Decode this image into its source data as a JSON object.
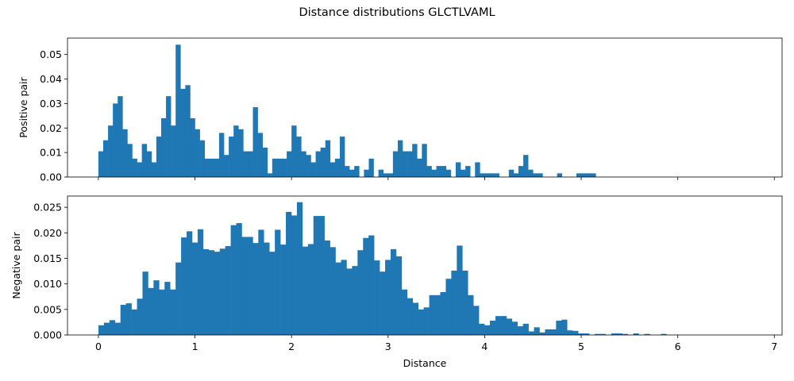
{
  "figure_title": "Distance distributions GLCTLVAML",
  "chart_data": [
    {
      "type": "bar",
      "panel": "top",
      "xlabel": "",
      "ylabel": "Positive pair",
      "xlim": [
        -0.32,
        7.08
      ],
      "ylim": [
        0,
        0.0567
      ],
      "x_ticks": [
        0,
        1,
        2,
        3,
        4,
        5,
        6,
        7
      ],
      "x_tick_labels_shown": false,
      "y_ticks": [
        0.0,
        0.01,
        0.02,
        0.03,
        0.04,
        0.05
      ],
      "y_tick_labels": [
        "0.00",
        "0.01",
        "0.02",
        "0.03",
        "0.04",
        "0.05"
      ],
      "bin_start": 0.0,
      "bin_width": 0.05,
      "color": "#1f77b4",
      "values": [
        0.0105,
        0.015,
        0.021,
        0.03,
        0.033,
        0.0195,
        0.0135,
        0.0075,
        0.006,
        0.0135,
        0.0105,
        0.006,
        0.0165,
        0.024,
        0.033,
        0.021,
        0.054,
        0.036,
        0.0375,
        0.024,
        0.0195,
        0.015,
        0.0075,
        0.0075,
        0.0075,
        0.018,
        0.009,
        0.0165,
        0.021,
        0.0195,
        0.0105,
        0.0105,
        0.0285,
        0.018,
        0.012,
        0.0015,
        0.0075,
        0.0075,
        0.0075,
        0.0105,
        0.021,
        0.0165,
        0.0105,
        0.009,
        0.006,
        0.0105,
        0.012,
        0.015,
        0.006,
        0.0075,
        0.0165,
        0.0045,
        0.003,
        0.0045,
        0.0,
        0.003,
        0.0075,
        0.0,
        0.003,
        0.0015,
        0.0015,
        0.0105,
        0.015,
        0.0105,
        0.0105,
        0.0135,
        0.0075,
        0.0135,
        0.0045,
        0.003,
        0.0045,
        0.0045,
        0.003,
        0.0,
        0.006,
        0.003,
        0.0045,
        0.0,
        0.006,
        0.0015,
        0.0015,
        0.0015,
        0.0015,
        0.0,
        0.0,
        0.003,
        0.0015,
        0.0045,
        0.009,
        0.003,
        0.0015,
        0.0015,
        0.0,
        0.0,
        0.0,
        0.0015,
        0.0,
        0.0,
        0.0,
        0.0015,
        0.0015,
        0.0015,
        0.0015
      ]
    },
    {
      "type": "bar",
      "panel": "bottom",
      "xlabel": "Distance",
      "ylabel": "Negative pair",
      "xlim": [
        -0.32,
        7.08
      ],
      "ylim": [
        0,
        0.0272
      ],
      "x_ticks": [
        0,
        1,
        2,
        3,
        4,
        5,
        6,
        7
      ],
      "x_tick_labels": [
        "0",
        "1",
        "2",
        "3",
        "4",
        "5",
        "6",
        "7"
      ],
      "y_ticks": [
        0.0,
        0.005,
        0.01,
        0.015,
        0.02,
        0.025
      ],
      "y_tick_labels": [
        "0.000",
        "0.005",
        "0.010",
        "0.015",
        "0.020",
        "0.025"
      ],
      "bin_start": 0.0,
      "bin_width": 0.0571,
      "color": "#1f77b4",
      "values": [
        0.0019,
        0.0024,
        0.0029,
        0.0024,
        0.0059,
        0.0062,
        0.005,
        0.0071,
        0.0124,
        0.0092,
        0.0107,
        0.0089,
        0.0104,
        0.0089,
        0.0142,
        0.0191,
        0.0203,
        0.0181,
        0.0207,
        0.0168,
        0.0166,
        0.0163,
        0.0169,
        0.0174,
        0.0215,
        0.0219,
        0.0192,
        0.0192,
        0.018,
        0.0206,
        0.0181,
        0.0163,
        0.0206,
        0.0177,
        0.0241,
        0.0234,
        0.026,
        0.0173,
        0.0178,
        0.0233,
        0.0233,
        0.0185,
        0.0172,
        0.0142,
        0.0147,
        0.013,
        0.0135,
        0.0166,
        0.019,
        0.0195,
        0.0146,
        0.0124,
        0.0147,
        0.0168,
        0.0154,
        0.0089,
        0.0072,
        0.0063,
        0.005,
        0.0054,
        0.0078,
        0.0078,
        0.0084,
        0.011,
        0.0126,
        0.0175,
        0.0126,
        0.0078,
        0.0057,
        0.0022,
        0.0019,
        0.0028,
        0.0037,
        0.0037,
        0.0032,
        0.0026,
        0.0017,
        0.0022,
        0.0007,
        0.0015,
        0.0005,
        0.0011,
        0.0011,
        0.0028,
        0.003,
        0.0009,
        0.0008,
        0.0003,
        0.0003,
        0.0,
        0.0002,
        0.0002,
        0.0,
        0.0003,
        0.0003,
        0.0002,
        0.0,
        0.0003,
        0.0,
        0.0002,
        0.0,
        0.0,
        0.0002
      ]
    }
  ]
}
